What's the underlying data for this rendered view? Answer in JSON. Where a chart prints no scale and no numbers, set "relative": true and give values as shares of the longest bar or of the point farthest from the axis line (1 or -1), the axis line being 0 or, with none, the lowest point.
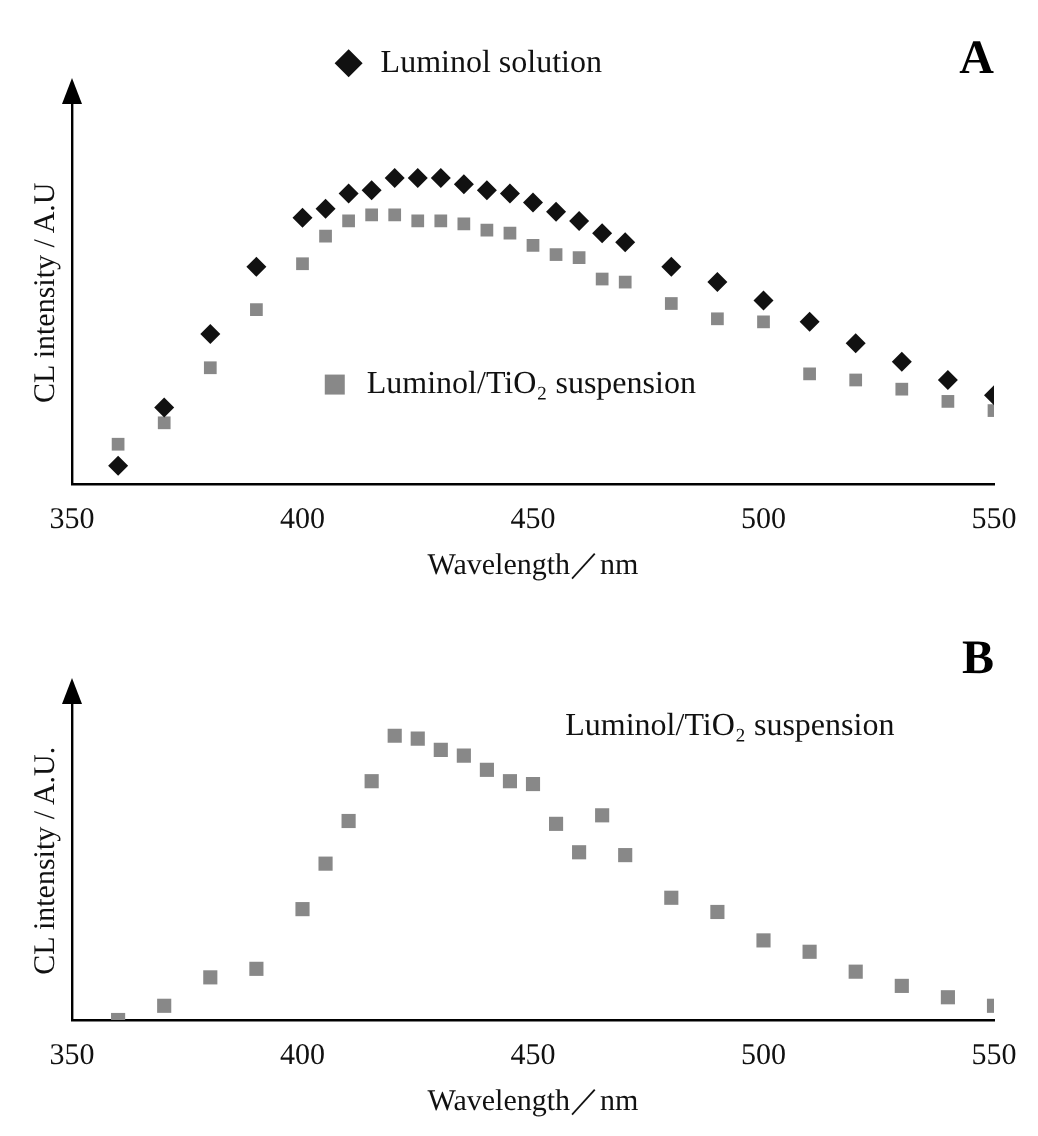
{
  "chart_data": [
    {
      "type": "scatter",
      "title": "A",
      "xlabel": "Wavelength／nm",
      "ylabel": "CL intensity / A.U",
      "relative": true,
      "xlim": [
        350,
        550
      ],
      "xticks": [
        350,
        400,
        450,
        500,
        550
      ],
      "grid": false,
      "legend": "top left",
      "series": [
        {
          "name": "Luminol solution",
          "color": "#111111",
          "marker": "diamond",
          "x": [
            360,
            370,
            380,
            390,
            400,
            405,
            410,
            415,
            420,
            425,
            430,
            435,
            440,
            445,
            450,
            455,
            460,
            465,
            470,
            480,
            490,
            500,
            510,
            520,
            530,
            540,
            550
          ],
          "values": [
            0.06,
            0.25,
            0.49,
            0.71,
            0.87,
            0.9,
            0.95,
            0.96,
            1.0,
            1.0,
            1.0,
            0.98,
            0.96,
            0.95,
            0.92,
            0.89,
            0.86,
            0.82,
            0.79,
            0.71,
            0.66,
            0.6,
            0.53,
            0.46,
            0.4,
            0.34,
            0.29
          ]
        },
        {
          "name": "Luminol/TiO₂ suspension",
          "color": "#888888",
          "marker": "square",
          "x": [
            360,
            370,
            380,
            390,
            400,
            405,
            410,
            415,
            420,
            425,
            430,
            435,
            440,
            445,
            450,
            455,
            460,
            465,
            470,
            480,
            490,
            500,
            510,
            520,
            530,
            540,
            550
          ],
          "values": [
            0.13,
            0.2,
            0.38,
            0.57,
            0.72,
            0.81,
            0.86,
            0.88,
            0.88,
            0.86,
            0.86,
            0.85,
            0.83,
            0.82,
            0.78,
            0.75,
            0.74,
            0.67,
            0.66,
            0.59,
            0.54,
            0.53,
            0.36,
            0.34,
            0.31,
            0.27,
            0.24
          ]
        }
      ]
    },
    {
      "type": "scatter",
      "title": "B",
      "xlabel": "Wavelength／nm",
      "ylabel": "CL intensity / A.U.",
      "relative": true,
      "xlim": [
        350,
        550
      ],
      "xticks": [
        350,
        400,
        450,
        500,
        550
      ],
      "grid": false,
      "legend": false,
      "series": [
        {
          "name": "Luminol/TiO₂ suspension",
          "color": "#888888",
          "marker": "square",
          "x": [
            360,
            370,
            380,
            390,
            400,
            405,
            410,
            415,
            420,
            425,
            430,
            435,
            440,
            445,
            450,
            455,
            460,
            465,
            470,
            480,
            490,
            500,
            510,
            520,
            530,
            540,
            550
          ],
          "values": [
            0,
            0.05,
            0.15,
            0.18,
            0.39,
            0.55,
            0.7,
            0.84,
            1.0,
            0.99,
            0.95,
            0.93,
            0.88,
            0.84,
            0.83,
            0.69,
            0.59,
            0.72,
            0.58,
            0.43,
            0.38,
            0.28,
            0.24,
            0.17,
            0.12,
            0.08,
            0.05
          ]
        }
      ]
    }
  ]
}
